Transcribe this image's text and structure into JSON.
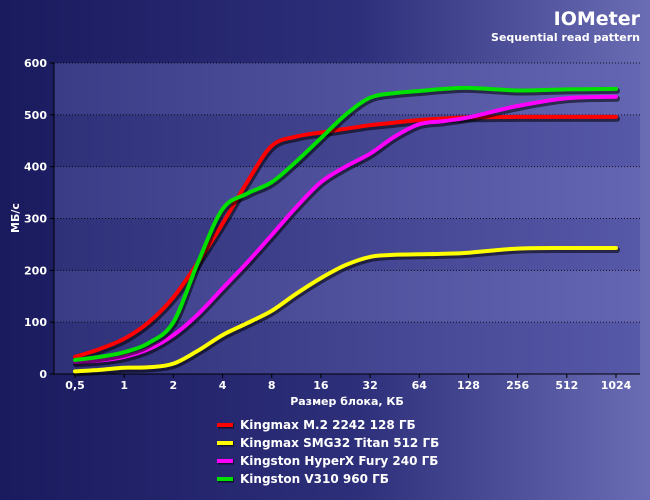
{
  "chart_data": {
    "type": "line",
    "title": "IOMeter",
    "subtitle": "Sequential read pattern",
    "xlabel": "Размер блока, КБ",
    "ylabel": "МБ/с",
    "x_ticks": [
      "0,5",
      "1",
      "2",
      "4",
      "8",
      "16",
      "32",
      "64",
      "128",
      "256",
      "512",
      "1024"
    ],
    "y_ticks": [
      "0",
      "100",
      "200",
      "300",
      "400",
      "500",
      "600"
    ],
    "ylim": [
      0,
      600
    ],
    "x_scale": "log2",
    "grid": true,
    "legend_position": "bottom",
    "series": [
      {
        "name": "Kingmax M.2 2242 128 ГБ",
        "color": "#ff0000",
        "x": [
          0.5,
          0.707,
          1,
          1.414,
          2,
          2.828,
          4,
          5.657,
          8,
          11.31,
          16,
          22.63,
          32,
          45.25,
          64,
          90.5,
          128,
          256,
          512,
          1024
        ],
        "values": [
          33,
          48,
          68,
          100,
          148,
          215,
          290,
          370,
          440,
          458,
          466,
          473,
          480,
          485,
          490,
          493,
          495,
          496,
          496,
          496
        ]
      },
      {
        "name": "Kingmax SMG32 Titan 512 ГБ",
        "color": "#ffff00",
        "x": [
          0.5,
          0.707,
          1,
          1.414,
          2,
          2.828,
          4,
          5.657,
          8,
          11.31,
          16,
          22.63,
          32,
          45.25,
          64,
          90.5,
          128,
          256,
          512,
          1024
        ],
        "values": [
          5,
          8,
          12,
          13,
          20,
          45,
          75,
          98,
          122,
          155,
          185,
          210,
          226,
          230,
          231,
          232,
          234,
          242,
          243,
          243
        ]
      },
      {
        "name": "Kingston HyperX Fury 240 ГБ",
        "color": "#ff00ff",
        "x": [
          0.5,
          0.707,
          1,
          1.414,
          2,
          2.828,
          4,
          5.657,
          8,
          11.31,
          16,
          22.63,
          32,
          45.25,
          64,
          90.5,
          128,
          256,
          512,
          1024
        ],
        "values": [
          23,
          26,
          33,
          48,
          75,
          115,
          165,
          215,
          268,
          322,
          370,
          400,
          425,
          458,
          482,
          488,
          495,
          517,
          532,
          535
        ]
      },
      {
        "name": "Kingston V310 960 ГБ",
        "color": "#00e000",
        "x": [
          0.5,
          0.707,
          1,
          1.414,
          2,
          2.828,
          4,
          5.657,
          8,
          11.31,
          16,
          22.63,
          32,
          45.25,
          64,
          90.5,
          128,
          256,
          512,
          1024
        ],
        "values": [
          27,
          33,
          42,
          60,
          100,
          215,
          318,
          348,
          370,
          410,
          455,
          500,
          533,
          542,
          546,
          550,
          552,
          547,
          549,
          550
        ]
      }
    ]
  }
}
